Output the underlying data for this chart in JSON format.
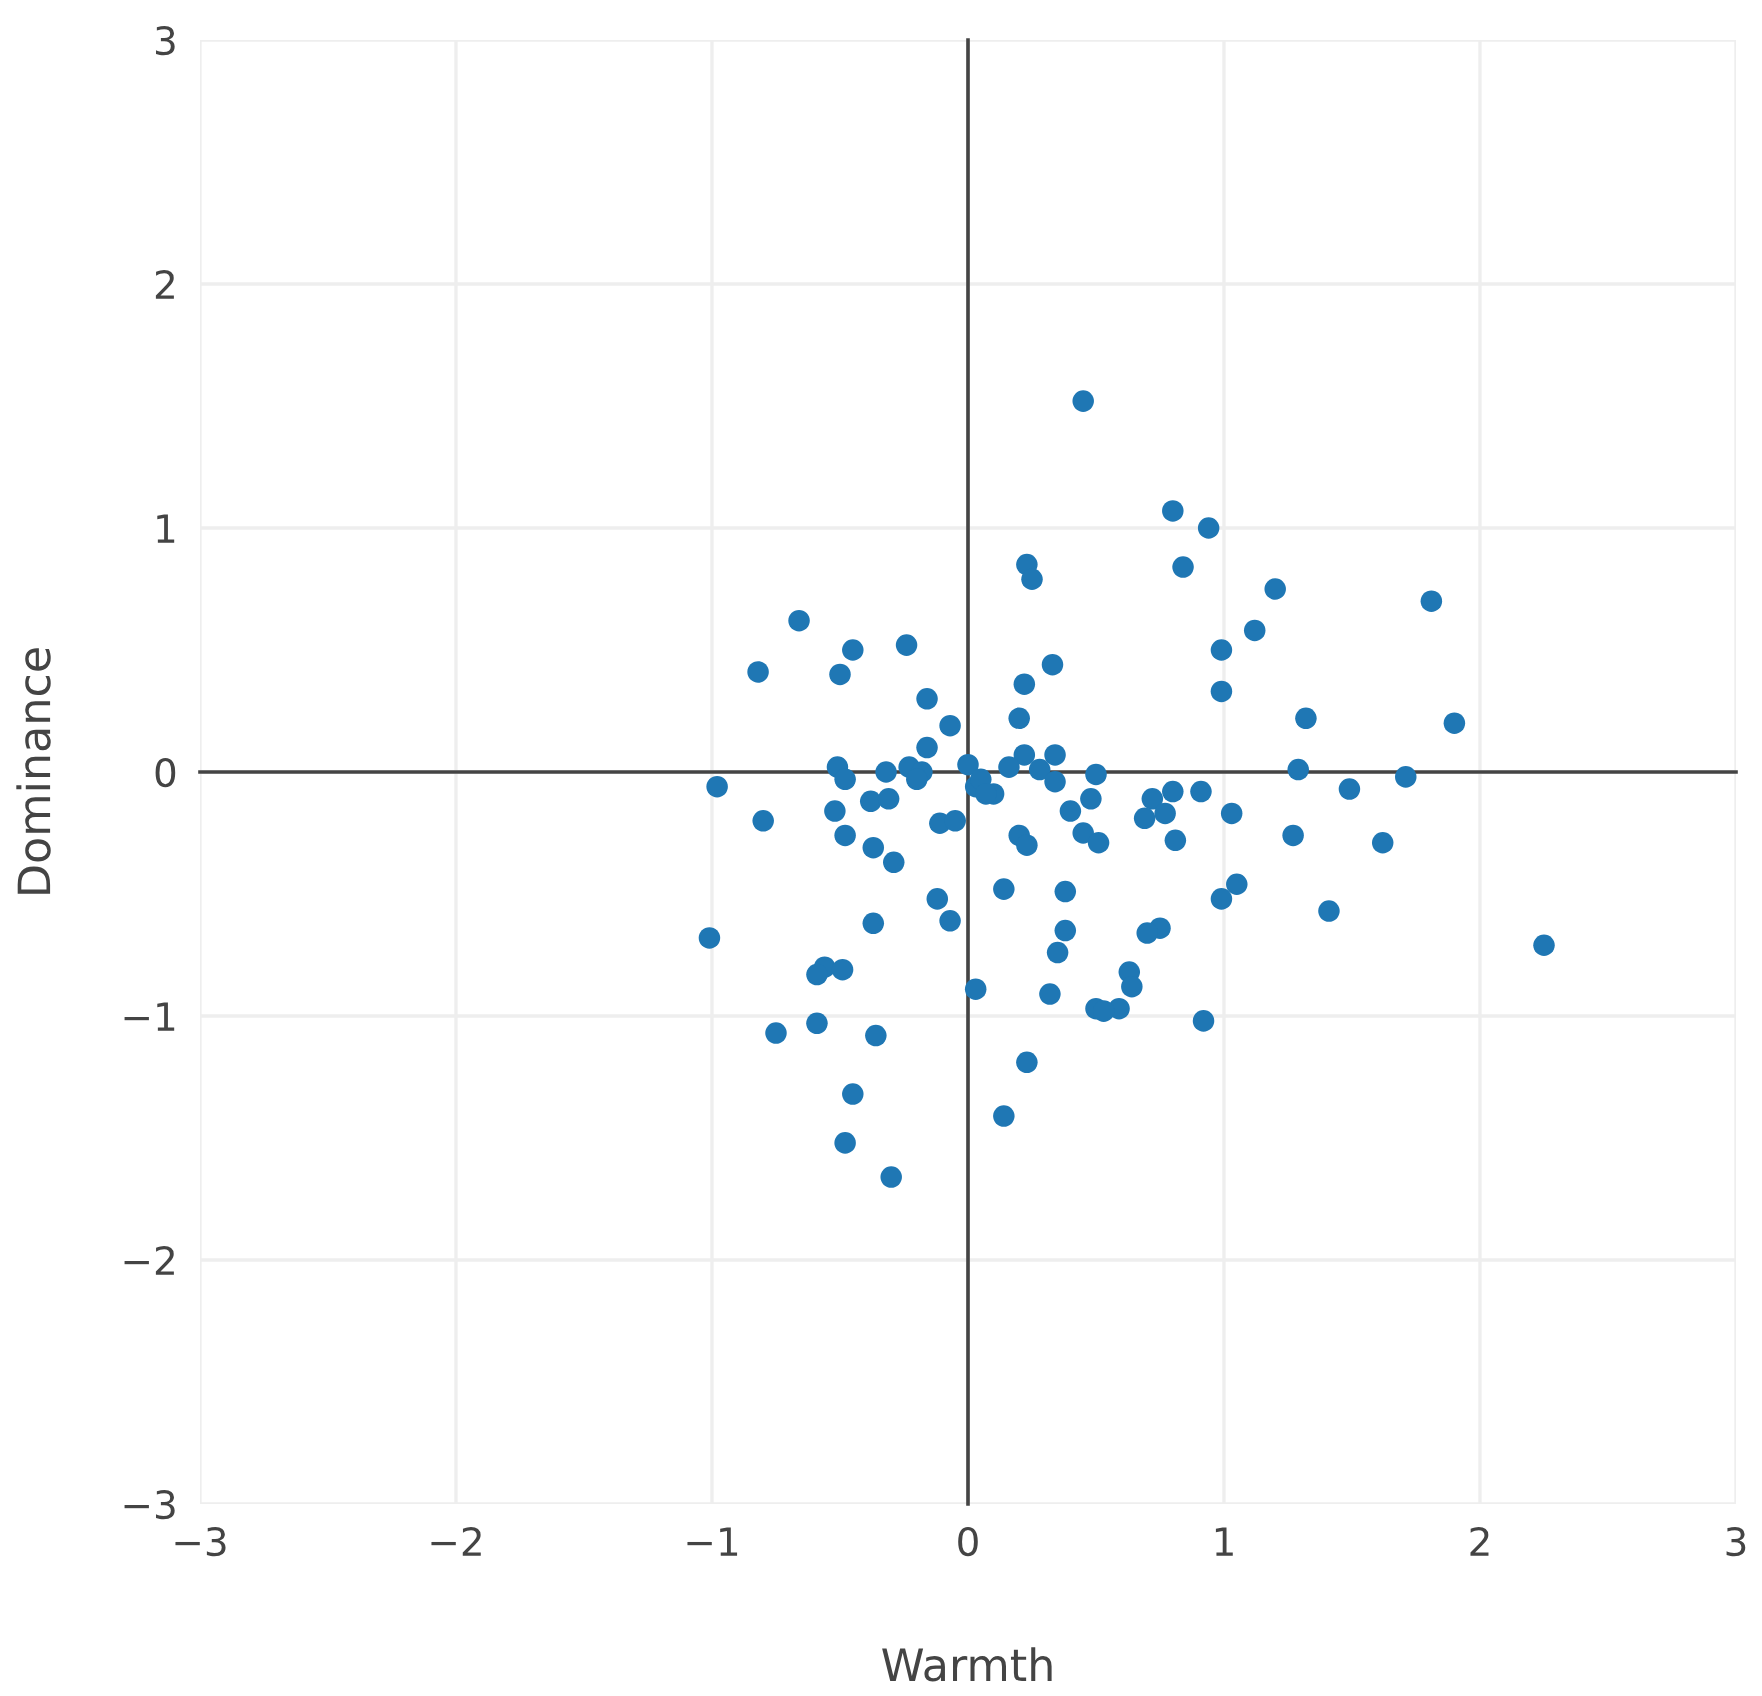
{
  "chart_data": {
    "type": "scatter",
    "xlabel": "Warmth",
    "ylabel": "Dominance",
    "xlim": [
      -3,
      3
    ],
    "ylim": [
      -3,
      3
    ],
    "xticks": [
      {
        "value": -3,
        "label": "−3"
      },
      {
        "value": -2,
        "label": "−2"
      },
      {
        "value": -1,
        "label": "−1"
      },
      0,
      1,
      2,
      3
    ],
    "yticks": [
      {
        "value": -3,
        "label": "−3"
      },
      {
        "value": -2,
        "label": "−2"
      },
      {
        "value": -1,
        "label": "−1"
      },
      0,
      1,
      2,
      3
    ],
    "grid": true,
    "marker": "circle",
    "series": [
      {
        "color": "#1f77b4",
        "x": [
          0.45,
          0.8,
          0.94,
          0.84,
          0.23,
          0.25,
          1.2,
          1.81,
          1.12,
          0.99,
          -0.66,
          -0.45,
          -0.24,
          -0.82,
          -0.5,
          0.33,
          0.22,
          0.99,
          -0.16,
          -0.07,
          1.32,
          1.9,
          0.2,
          -0.16,
          0.22,
          0.34,
          -0.51,
          -0.23,
          -0.18,
          -0.32,
          0.0,
          0.16,
          0.28,
          0.5,
          1.29,
          1.71,
          -0.98,
          -0.48,
          -0.2,
          0.03,
          0.1,
          0.34,
          0.91,
          0.8,
          0.72,
          0.48,
          1.49,
          -0.8,
          -0.52,
          -0.38,
          -0.31,
          0.4,
          0.77,
          1.03,
          -0.11,
          -0.05,
          -0.48,
          0.2,
          0.23,
          0.45,
          0.51,
          0.81,
          0.69,
          1.27,
          -0.37,
          -0.29,
          1.62,
          0.38,
          0.14,
          -0.12,
          1.05,
          0.99,
          1.41,
          -0.07,
          -0.37,
          0.38,
          0.75,
          0.7,
          -1.01,
          0.35,
          -0.56,
          -0.59,
          -0.49,
          0.63,
          0.64,
          0.03,
          0.32,
          0.59,
          0.5,
          0.53,
          0.92,
          2.25,
          -0.75,
          -0.59,
          -0.36,
          0.23,
          -0.45,
          0.14,
          -0.48,
          -0.3,
          0.05,
          0.07
        ],
        "values": [
          1.52,
          1.07,
          1.0,
          0.84,
          0.85,
          0.79,
          0.75,
          0.7,
          0.58,
          0.5,
          0.62,
          0.5,
          0.52,
          0.41,
          0.4,
          0.44,
          0.36,
          0.33,
          0.3,
          0.19,
          0.22,
          0.2,
          0.22,
          0.1,
          0.07,
          0.07,
          0.02,
          0.02,
          0.0,
          0.0,
          0.03,
          0.02,
          0.01,
          -0.01,
          0.01,
          -0.02,
          -0.06,
          -0.03,
          -0.03,
          -0.06,
          -0.09,
          -0.04,
          -0.08,
          -0.08,
          -0.11,
          -0.11,
          -0.07,
          -0.2,
          -0.16,
          -0.12,
          -0.11,
          -0.16,
          -0.17,
          -0.17,
          -0.21,
          -0.2,
          -0.26,
          -0.26,
          -0.3,
          -0.25,
          -0.29,
          -0.28,
          -0.19,
          -0.26,
          -0.31,
          -0.37,
          -0.29,
          -0.49,
          -0.48,
          -0.52,
          -0.46,
          -0.52,
          -0.57,
          -0.61,
          -0.62,
          -0.65,
          -0.64,
          -0.66,
          -0.68,
          -0.74,
          -0.8,
          -0.83,
          -0.81,
          -0.82,
          -0.88,
          -0.89,
          -0.91,
          -0.97,
          -0.97,
          -0.98,
          -1.02,
          -0.71,
          -1.07,
          -1.03,
          -1.08,
          -1.19,
          -1.32,
          -1.41,
          -1.52,
          -1.66,
          -0.03,
          -0.09
        ]
      }
    ]
  }
}
